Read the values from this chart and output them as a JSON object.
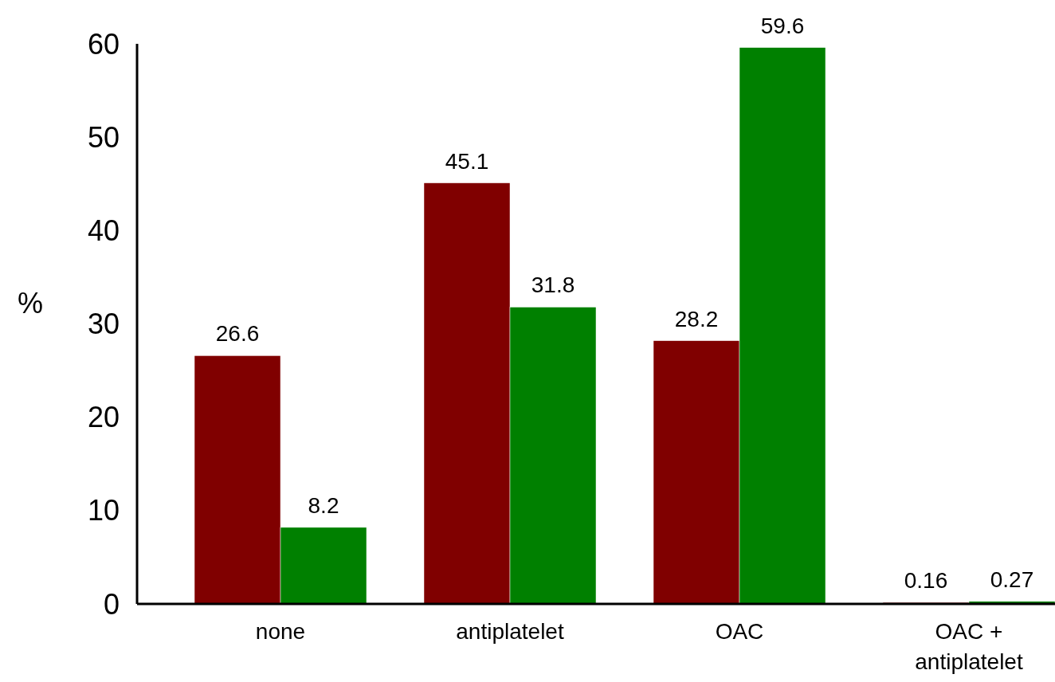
{
  "chart_data": {
    "type": "bar",
    "ylabel": "%",
    "categories": [
      "none",
      "antiplatelet",
      "OAC",
      "OAC + antiplatelet"
    ],
    "series": [
      {
        "color": "#800000",
        "values": [
          26.6,
          45.1,
          28.2,
          0.16
        ]
      },
      {
        "color": "#008000",
        "values": [
          8.2,
          31.8,
          59.6,
          0.27
        ]
      }
    ],
    "ylim": [
      0,
      60
    ],
    "yticks": [
      0,
      10,
      20,
      30,
      40,
      50,
      60
    ],
    "data_labels": true
  }
}
